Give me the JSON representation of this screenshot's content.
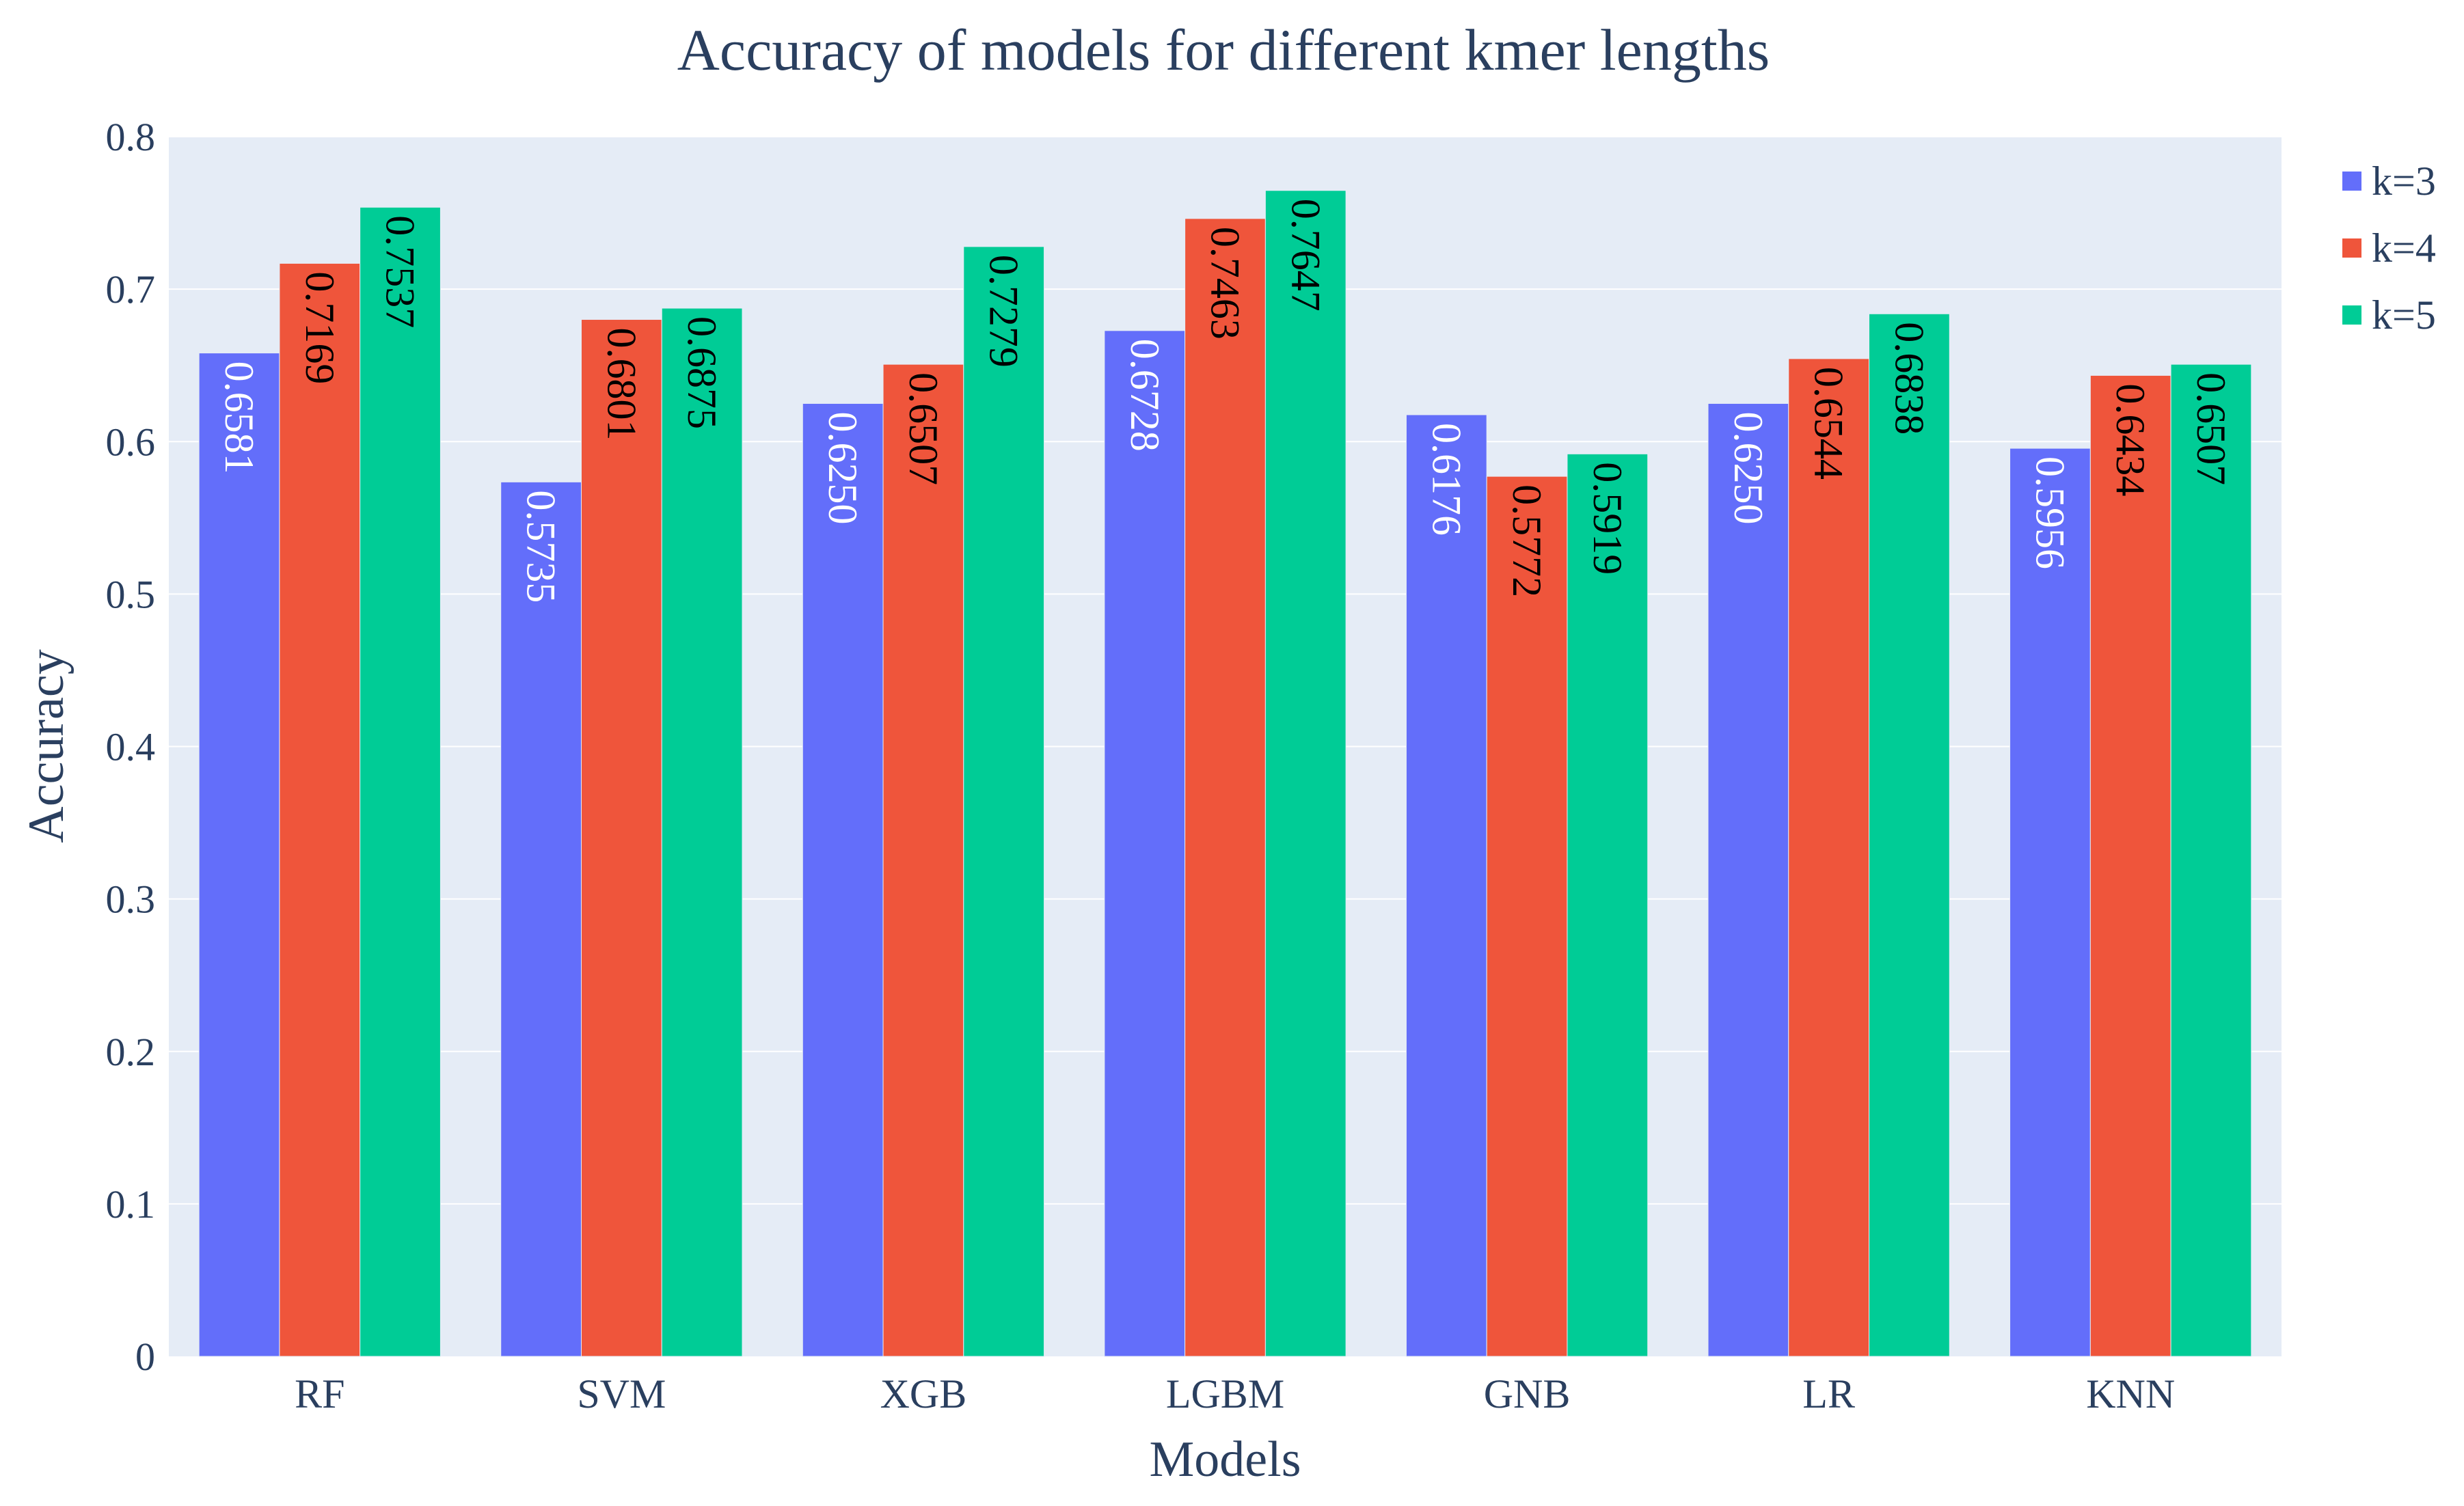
{
  "colors": {
    "k3": "#636efa",
    "k4": "#ef553b",
    "k5": "#00cc96",
    "plot_bg": "#e5ecf6",
    "grid": "#ffffff",
    "text": "#2a3f5f"
  },
  "chart_data": {
    "type": "bar",
    "title": "Accuracy of models for different kmer lengths",
    "xlabel": "Models",
    "ylabel": "Accuracy",
    "ylim": [
      0,
      0.8
    ],
    "yticks": [
      0,
      0.1,
      0.2,
      0.3,
      0.4,
      0.5,
      0.6,
      0.7,
      0.8
    ],
    "ytick_labels": [
      "0",
      "0.1",
      "0.2",
      "0.3",
      "0.4",
      "0.5",
      "0.6",
      "0.7",
      "0.8"
    ],
    "grid": true,
    "legend_position": "top-right",
    "categories": [
      "RF",
      "SVM",
      "XGB",
      "LGBM",
      "GNB",
      "LR",
      "KNN"
    ],
    "series": [
      {
        "name": "k=3",
        "color_key": "k3",
        "values": [
          0.6581,
          0.5735,
          0.625,
          0.6728,
          0.6176,
          0.625,
          0.5956
        ],
        "labels": [
          "0.6581",
          "0.5735",
          "0.6250",
          "0.6728",
          "0.6176",
          "0.6250",
          "0.5956"
        ]
      },
      {
        "name": "k=4",
        "color_key": "k4",
        "values": [
          0.7169,
          0.6801,
          0.6507,
          0.7463,
          0.5772,
          0.6544,
          0.6434
        ],
        "labels": [
          "0.7169",
          "0.6801",
          "0.6507",
          "0.7463",
          "0.5772",
          "0.6544",
          "0.6434"
        ]
      },
      {
        "name": "k=5",
        "color_key": "k5",
        "values": [
          0.7537,
          0.6875,
          0.7279,
          0.7647,
          0.5919,
          0.6838,
          0.6507
        ],
        "labels": [
          "0.7537",
          "0.6875",
          "0.7279",
          "0.7647",
          "0.5919",
          "0.6838",
          "0.6507"
        ]
      }
    ]
  }
}
